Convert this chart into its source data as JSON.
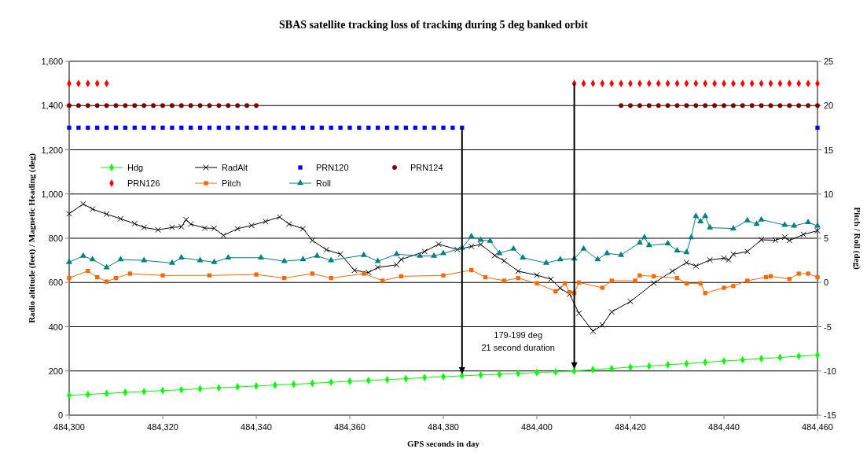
{
  "chart_data": {
    "type": "line",
    "title": "SBAS satellite tracking loss of tracking during 5 deg banked orbit",
    "xlabel": "GPS seconds in day",
    "ylabel": "Radio altitude (feet) / Magnetic Heading (deg)",
    "y2label": "Pitch / Roll (deg)",
    "xlim": [
      484300,
      484460
    ],
    "xticks": [
      {
        "value": 484300,
        "label": "484,300"
      },
      {
        "value": 484320,
        "label": "484,320"
      },
      {
        "value": 484340,
        "label": "484,340"
      },
      {
        "value": 484360,
        "label": "484,360"
      },
      {
        "value": 484380,
        "label": "484,380"
      },
      {
        "value": 484400,
        "label": "484,400"
      },
      {
        "value": 484420,
        "label": "484,420"
      },
      {
        "value": 484440,
        "label": "484,440"
      },
      {
        "value": 484460,
        "label": "484,460"
      }
    ],
    "ylim": [
      0,
      1600
    ],
    "yticks": [
      0,
      200,
      400,
      600,
      800,
      {
        "value": 1000,
        "label": "1,000"
      },
      {
        "value": 1200,
        "label": "1,200"
      },
      {
        "value": 1400,
        "label": "1,400"
      },
      {
        "value": 1600,
        "label": "1,600"
      }
    ],
    "y2lim": [
      -15,
      25
    ],
    "y2ticks": [
      -15,
      -10,
      -5,
      0,
      5,
      10,
      15,
      20,
      25
    ],
    "grid": "y",
    "legend": "top left",
    "series": [
      {
        "name": "Hdg",
        "color": "#00ff00",
        "marker": "diamond",
        "x": [
          484300,
          484304,
          484308,
          484312,
          484316,
          484320,
          484324,
          484328,
          484332,
          484336,
          484340,
          484344,
          484348,
          484352,
          484356,
          484360,
          484364,
          484368,
          484372,
          484376,
          484380,
          484384,
          484388,
          484392,
          484396,
          484400,
          484404,
          484408,
          484412,
          484416,
          484420,
          484424,
          484428,
          484432,
          484436,
          484440,
          484444,
          484448,
          484452,
          484456,
          484460
        ],
        "values": [
          90,
          94,
          98,
          103,
          107,
          111,
          115,
          119,
          124,
          128,
          132,
          136,
          140,
          144,
          149,
          153,
          157,
          161,
          165,
          170,
          174,
          178,
          182,
          185,
          189,
          193,
          196,
          200,
          206,
          211,
          217,
          222,
          228,
          233,
          239,
          245,
          250,
          256,
          261,
          267,
          272
        ]
      },
      {
        "name": "RadAlt",
        "color": "#000000",
        "marker": "cross",
        "x": [
          484300,
          484303,
          484305,
          484308,
          484311,
          484314,
          484316,
          484319,
          484322,
          484324,
          484325,
          484326,
          484329,
          484331,
          484333,
          484336,
          484339,
          484342,
          484345,
          484347,
          484350,
          484352,
          484355,
          484358,
          484361,
          484364,
          484366,
          484370,
          484371,
          484376,
          484379,
          484383,
          484386,
          484388,
          484391,
          484393,
          484396,
          484400,
          484403,
          484405,
          484407,
          484409,
          484412,
          484414,
          484416,
          484420,
          484425,
          484429,
          484432,
          484434,
          484437,
          484440,
          484441,
          484442,
          484445,
          484448,
          484451,
          484453,
          484454,
          484457,
          484460
        ],
        "values": [
          911,
          955,
          932,
          909,
          888,
          866,
          849,
          838,
          849,
          852,
          884,
          864,
          846,
          845,
          813,
          843,
          858,
          876,
          896,
          864,
          843,
          790,
          748,
          728,
          655,
          645,
          668,
          680,
          704,
          740,
          773,
          749,
          763,
          772,
          722,
          698,
          651,
          633,
          615,
          574,
          547,
          461,
          380,
          408,
          467,
          514,
          597,
          651,
          690,
          674,
          702,
          710,
          702,
          728,
          740,
          793,
          791,
          805,
          790,
          817,
          834
        ]
      },
      {
        "name": "PRN120",
        "type": "scatter",
        "color": "#0000ff",
        "marker": "square",
        "x": [
          484300,
          484302,
          484304,
          484306,
          484308,
          484310,
          484312,
          484314,
          484316,
          484318,
          484320,
          484322,
          484324,
          484326,
          484328,
          484330,
          484332,
          484334,
          484336,
          484338,
          484340,
          484342,
          484344,
          484346,
          484348,
          484350,
          484352,
          484354,
          484356,
          484358,
          484360,
          484362,
          484364,
          484366,
          484368,
          484370,
          484372,
          484374,
          484376,
          484378,
          484380,
          484382,
          484384,
          484460
        ],
        "values": [
          1300,
          1300,
          1300,
          1300,
          1300,
          1300,
          1300,
          1300,
          1300,
          1300,
          1300,
          1300,
          1300,
          1300,
          1300,
          1300,
          1300,
          1300,
          1300,
          1300,
          1300,
          1300,
          1300,
          1300,
          1300,
          1300,
          1300,
          1300,
          1300,
          1300,
          1300,
          1300,
          1300,
          1300,
          1300,
          1300,
          1300,
          1300,
          1300,
          1300,
          1300,
          1300,
          1300,
          1300
        ]
      },
      {
        "name": "PRN124",
        "type": "scatter",
        "color": "#800000",
        "marker": "circle",
        "x": [
          484300,
          484302,
          484304,
          484306,
          484308,
          484310,
          484312,
          484314,
          484316,
          484318,
          484320,
          484322,
          484324,
          484326,
          484328,
          484330,
          484332,
          484334,
          484336,
          484338,
          484340,
          484418,
          484420,
          484422,
          484424,
          484426,
          484428,
          484430,
          484432,
          484434,
          484436,
          484438,
          484440,
          484442,
          484444,
          484446,
          484448,
          484450,
          484452,
          484454,
          484456,
          484458,
          484460
        ],
        "values": [
          1400,
          1400,
          1400,
          1400,
          1400,
          1400,
          1400,
          1400,
          1400,
          1400,
          1400,
          1400,
          1400,
          1400,
          1400,
          1400,
          1400,
          1400,
          1400,
          1400,
          1400,
          1400,
          1400,
          1400,
          1400,
          1400,
          1400,
          1400,
          1400,
          1400,
          1400,
          1400,
          1400,
          1400,
          1400,
          1400,
          1400,
          1400,
          1400,
          1400,
          1400,
          1400,
          1400
        ]
      },
      {
        "name": "PRN126",
        "type": "scatter",
        "color": "#ff0000",
        "marker": "diamond",
        "x": [
          484300,
          484302,
          484304,
          484306,
          484308,
          484408,
          484410,
          484412,
          484414,
          484416,
          484418,
          484420,
          484422,
          484424,
          484426,
          484428,
          484430,
          484432,
          484434,
          484436,
          484438,
          484440,
          484442,
          484444,
          484446,
          484448,
          484450,
          484452,
          484454,
          484456,
          484458,
          484460
        ],
        "values": [
          1500,
          1500,
          1500,
          1500,
          1500,
          1500,
          1500,
          1500,
          1500,
          1500,
          1500,
          1500,
          1500,
          1500,
          1500,
          1500,
          1500,
          1500,
          1500,
          1500,
          1500,
          1500,
          1500,
          1500,
          1500,
          1500,
          1500,
          1500,
          1500,
          1500,
          1500,
          1500
        ]
      },
      {
        "name": "Pitch",
        "axis": "y2",
        "color": "#ff6600",
        "marker": "square",
        "x": [
          484300,
          484304,
          484306,
          484308,
          484310,
          484313,
          484320,
          484330,
          484340,
          484346,
          484352,
          484356,
          484363,
          484367,
          484371,
          484380,
          484386,
          484389,
          484393,
          484396,
          484400,
          484404,
          484406,
          484407,
          484408,
          484409,
          484414,
          484416,
          484421,
          484422,
          484425,
          484430,
          484432,
          484435,
          484436,
          484440,
          484442,
          484445,
          484449,
          484450,
          484454,
          484456,
          484458,
          484460
        ],
        "values": [
          0.5,
          1.3,
          0.6,
          0.1,
          0.5,
          1.0,
          0.8,
          0.8,
          0.9,
          0.5,
          1.0,
          0.5,
          1.0,
          0.2,
          0.7,
          0.8,
          1.4,
          0.6,
          0.2,
          0.5,
          -0.1,
          -1.0,
          -0.1,
          -1.1,
          -1.2,
          0.0,
          -0.6,
          0.2,
          0.2,
          0.8,
          0.7,
          0.5,
          -0.1,
          -0.1,
          -1.2,
          -0.6,
          -0.4,
          0.2,
          0.6,
          0.7,
          0.4,
          1.0,
          1.0,
          0.6
        ]
      },
      {
        "name": "Roll",
        "axis": "y2",
        "color": "#008080",
        "marker": "triangle",
        "x": [
          484300,
          484303,
          484305,
          484308,
          484311,
          484316,
          484322,
          484324,
          484328,
          484331,
          484334,
          484341,
          484346,
          484350,
          484353,
          484356,
          484363,
          484366,
          484370,
          484375,
          484378,
          484380,
          484384,
          484386,
          484388,
          484390,
          484392,
          484395,
          484397,
          484402,
          484405,
          484408,
          484410,
          484413,
          484415,
          484418,
          484422,
          484423,
          484424,
          484428,
          484430,
          484432,
          484433,
          484434,
          484435,
          484436,
          484437,
          484442,
          484445,
          484447,
          484448,
          484453,
          484455,
          484458,
          484460
        ],
        "values": [
          2.3,
          3.0,
          2.6,
          1.7,
          2.6,
          2.5,
          2.2,
          2.8,
          2.5,
          2.3,
          2.8,
          2.8,
          2.4,
          2.6,
          3.0,
          2.5,
          3.1,
          2.4,
          3.2,
          3.0,
          3.0,
          3.3,
          3.9,
          5.2,
          4.8,
          4.7,
          3.3,
          3.8,
          2.8,
          2.2,
          2.6,
          2.7,
          3.8,
          2.6,
          3.3,
          3.1,
          4.5,
          5.1,
          4.2,
          4.4,
          3.6,
          3.4,
          5.1,
          7.5,
          6.9,
          7.5,
          6.2,
          6.1,
          7.0,
          6.6,
          7.1,
          6.5,
          6.4,
          6.8,
          6.4
        ]
      }
    ],
    "annotations": [
      "179-199 deg",
      "21 second duration"
    ]
  }
}
